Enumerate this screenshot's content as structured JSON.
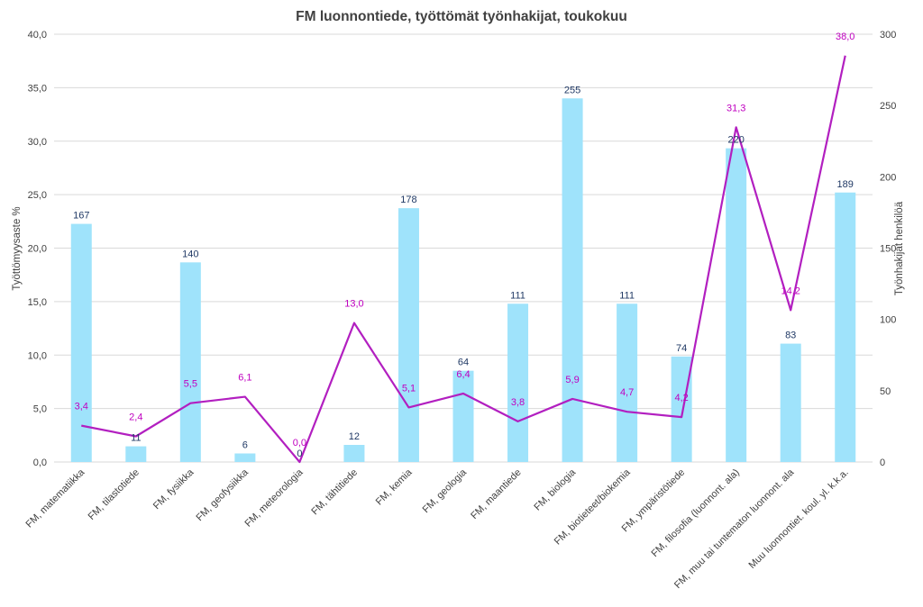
{
  "chart_data": {
    "type": "bar",
    "title": "FM luonnontiede, työttömät työnhakijat, toukokuu",
    "categories": [
      "FM, matematiikka",
      "FM, tilastotiede",
      "FM, fysiikka",
      "FM, geofysiikka",
      "FM, meteorologia",
      "FM, tähtitiede",
      "FM, kemia",
      "FM, geologia",
      "FM, maantiede",
      "FM, biologia",
      "FM, biotieteet/biokemia",
      "FM, ympäristötiede",
      "FM, filosofia (luonnont. ala)",
      "FM, muu tai tuntematon luonnont. ala",
      "Muu luonnontiet. koul. yl. k.k.a."
    ],
    "series": [
      {
        "kind": "bar",
        "axis": "right",
        "color": "#9fe3fb",
        "label_color": "#1f3864",
        "values": [
          167,
          11,
          140,
          6,
          0,
          12,
          178,
          64,
          111,
          255,
          111,
          74,
          220,
          83,
          189
        ],
        "labels": [
          "167",
          "11",
          "140",
          "6",
          "0",
          "12",
          "178",
          "64",
          "111",
          "255",
          "111",
          "74",
          "220",
          "83",
          "189"
        ]
      },
      {
        "kind": "line",
        "axis": "left",
        "color": "#b21fc0",
        "label_color": "#c000c0",
        "values": [
          3.4,
          2.4,
          5.5,
          6.1,
          0.0,
          13.0,
          5.1,
          6.4,
          3.8,
          5.9,
          4.7,
          4.2,
          31.3,
          14.2,
          38.0
        ],
        "labels": [
          "3,4",
          "2,4",
          "5,5",
          "6,1",
          "0,0",
          "13,0",
          "5,1",
          "6,4",
          "3,8",
          "5,9",
          "4,7",
          "4,2",
          "31,3",
          "14,2",
          "38,0"
        ]
      }
    ],
    "ylabel": "Työttömyysaste %",
    "y2label": "Työnhakijat henkilöä",
    "ylim": [
      0,
      40
    ],
    "y2lim": [
      0,
      300
    ],
    "yticks": [
      "0,0",
      "5,0",
      "10,0",
      "15,0",
      "20,0",
      "25,0",
      "30,0",
      "35,0",
      "40,0"
    ],
    "y2ticks": [
      "0",
      "50",
      "100",
      "150",
      "200",
      "250",
      "300"
    ],
    "grid": true,
    "legend": "none"
  }
}
